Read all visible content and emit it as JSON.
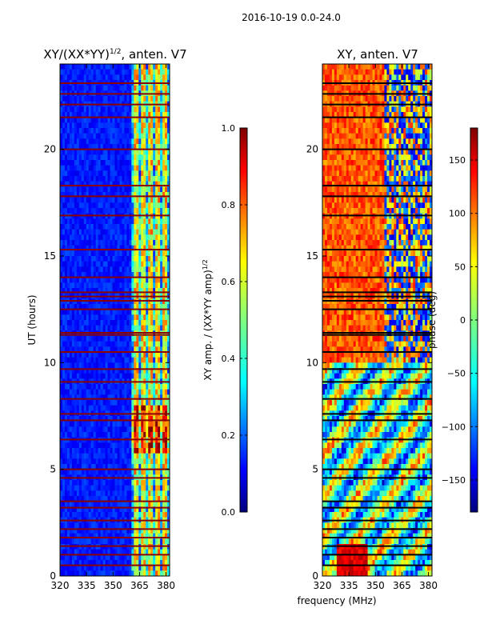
{
  "figure": {
    "suptitle": "2016-10-19 0.0-24.0",
    "xlabel": "frequency (MHz)"
  },
  "chart_data": [
    {
      "type": "heatmap",
      "title": "XY/(XX*YY)",
      "title_sup": "1/2",
      "title_suffix": ", anten. V7",
      "ylabel": "UT (hours)",
      "xlim": [
        320,
        382
      ],
      "ylim": [
        0,
        24
      ],
      "xticks": [
        320,
        335,
        350,
        365,
        380
      ],
      "yticks": [
        0,
        5,
        10,
        15,
        20
      ],
      "colorbar": {
        "label": "XY amp. / (XX*YY amp)",
        "label_sup": "1/2",
        "range": [
          0.0,
          1.0
        ],
        "ticks": [
          "0.0",
          "0.2",
          "0.4",
          "0.6",
          "0.8",
          "1.0"
        ],
        "colormap": "jet"
      },
      "colors": [
        "#00007f",
        "#0000ff",
        "#007fff",
        "#00ffff",
        "#7fff7f",
        "#ffff00",
        "#ff7f00",
        "#ff0000",
        "#7f0000"
      ],
      "flagged_ut_hours": [
        0.5,
        1.0,
        1.4,
        1.8,
        2.2,
        2.6,
        3.2,
        3.5,
        4.6,
        5.0,
        6.4,
        7.3,
        7.6,
        8.3,
        9.1,
        9.7,
        10.5,
        11.3,
        11.4,
        12.5,
        12.9,
        13.1,
        13.3,
        14.0,
        15.3,
        16.9,
        17.8,
        18.3,
        20.0,
        21.5,
        22.1,
        22.6,
        23.1
      ],
      "flag_color": "#8b0000"
    },
    {
      "type": "heatmap",
      "title": "XY, anten. V7",
      "xlim": [
        320,
        382
      ],
      "ylim": [
        0,
        24
      ],
      "xticks": [
        320,
        335,
        350,
        365,
        380
      ],
      "yticks": [
        0,
        5,
        10,
        15,
        20
      ],
      "colorbar": {
        "label": "phase (deg)",
        "range": [
          -180,
          180
        ],
        "ticks": [
          "−150",
          "−100",
          "−50",
          "0",
          "50",
          "100",
          "150"
        ],
        "tick_values": [
          -150,
          -100,
          -50,
          0,
          50,
          100,
          150
        ],
        "colormap": "jet"
      },
      "colors": [
        "#00007f",
        "#0000ff",
        "#007fff",
        "#00ffff",
        "#7fff7f",
        "#ffff00",
        "#ff7f00",
        "#ff0000",
        "#7f0000"
      ],
      "flagged_ut_hours": [
        0.5,
        1.0,
        1.4,
        1.8,
        2.2,
        2.6,
        3.2,
        3.5,
        4.6,
        5.0,
        6.4,
        7.3,
        7.6,
        8.3,
        9.1,
        9.7,
        10.5,
        11.3,
        11.4,
        12.5,
        12.9,
        13.1,
        13.3,
        14.0,
        15.3,
        16.9,
        17.8,
        18.3,
        20.0,
        21.5,
        22.1,
        22.6,
        23.1
      ],
      "flag_color": "#000000"
    }
  ]
}
